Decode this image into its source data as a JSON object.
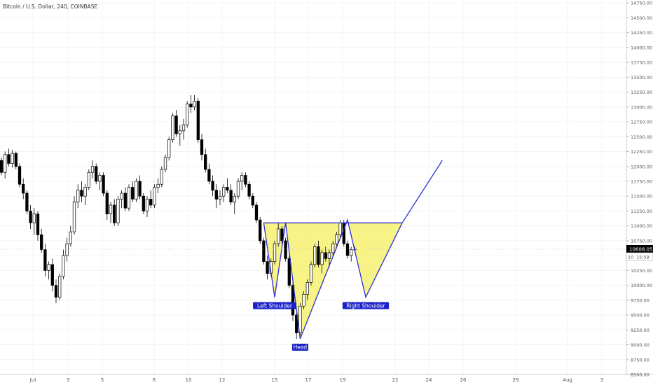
{
  "header": {
    "title": "Bitcoin / U.S. Dollar, 240, COINBASE"
  },
  "chart_data": {
    "type": "candlestick",
    "title": "Bitcoin / U.S. Dollar, 240, COINBASE",
    "x_tick_labels": [
      "Jul",
      "3",
      "5",
      "8",
      "10",
      "12",
      "15",
      "17",
      "19",
      "22",
      "24",
      "26",
      "29",
      "Aug",
      "3"
    ],
    "y_ticks": [
      8500,
      8750,
      9000,
      9250,
      9500,
      9750,
      10000,
      10250,
      10500,
      10750,
      11000,
      11250,
      11500,
      11750,
      12000,
      12250,
      12500,
      12750,
      13000,
      13250,
      13500,
      13750,
      14000,
      14250,
      14500,
      14750
    ],
    "y_tick_labels": [
      "8500.00",
      "8750.00",
      "9000.00",
      "9250.00",
      "9500.00",
      "9750.00",
      "10000.00",
      "10250.00",
      "10500.00",
      "10750.00",
      "11000.00",
      "11250.00",
      "11500.00",
      "11750.00",
      "12000.00",
      "12250.00",
      "12500.00",
      "12750.00",
      "13000.00",
      "13250.00",
      "13500.00",
      "13750.00",
      "14000.00",
      "14250.00",
      "14500.00",
      "14750.00"
    ],
    "ylim": [
      8500,
      14800
    ],
    "current_price": {
      "value": 10608.05,
      "label": "10608.05",
      "countdown": "15:58",
      "hidden_label": "10"
    },
    "candles": [
      [
        12100,
        12150,
        11850,
        11900
      ],
      [
        11900,
        12250,
        11800,
        12200
      ],
      [
        12200,
        12300,
        12000,
        12050
      ],
      [
        12050,
        12280,
        11980,
        12220
      ],
      [
        12220,
        12250,
        11950,
        12000
      ],
      [
        12000,
        12050,
        11650,
        11700
      ],
      [
        11700,
        11800,
        11450,
        11550
      ],
      [
        11550,
        11600,
        11200,
        11250
      ],
      [
        11250,
        11350,
        10950,
        11050
      ],
      [
        11050,
        11300,
        10850,
        11200
      ],
      [
        11200,
        11250,
        10750,
        10850
      ],
      [
        10850,
        10950,
        10550,
        10600
      ],
      [
        10600,
        10700,
        10150,
        10250
      ],
      [
        10250,
        10400,
        10100,
        10350
      ],
      [
        10350,
        10450,
        9900,
        10000
      ],
      [
        10000,
        10100,
        9700,
        9800
      ],
      [
        9800,
        10200,
        9750,
        10150
      ],
      [
        10150,
        10600,
        10100,
        10500
      ],
      [
        10500,
        10800,
        10400,
        10700
      ],
      [
        10700,
        11000,
        10650,
        10900
      ],
      [
        10900,
        11500,
        10850,
        11400
      ],
      [
        11400,
        11700,
        11300,
        11600
      ],
      [
        11600,
        11750,
        11400,
        11500
      ],
      [
        11500,
        11700,
        11350,
        11650
      ],
      [
        11650,
        11950,
        11600,
        11900
      ],
      [
        11900,
        12100,
        11800,
        12000
      ],
      [
        12000,
        12050,
        11700,
        11750
      ],
      [
        11750,
        11900,
        11600,
        11850
      ],
      [
        11850,
        11900,
        11500,
        11550
      ],
      [
        11550,
        11600,
        11100,
        11200
      ],
      [
        11200,
        11400,
        11050,
        11350
      ],
      [
        11350,
        11450,
        11000,
        11050
      ],
      [
        11050,
        11500,
        11000,
        11450
      ],
      [
        11450,
        11600,
        11300,
        11550
      ],
      [
        11550,
        11650,
        11250,
        11300
      ],
      [
        11300,
        11700,
        11250,
        11650
      ],
      [
        11650,
        11750,
        11400,
        11450
      ],
      [
        11450,
        11800,
        11400,
        11750
      ],
      [
        11750,
        11850,
        11450,
        11500
      ],
      [
        11500,
        11550,
        11200,
        11250
      ],
      [
        11250,
        11500,
        11150,
        11450
      ],
      [
        11450,
        11600,
        11300,
        11350
      ],
      [
        11350,
        11700,
        11300,
        11650
      ],
      [
        11650,
        11800,
        11550,
        11700
      ],
      [
        11700,
        12000,
        11650,
        11950
      ],
      [
        11950,
        12200,
        11900,
        12150
      ],
      [
        12150,
        12500,
        12100,
        12450
      ],
      [
        12450,
        12900,
        12400,
        12850
      ],
      [
        12850,
        12950,
        12500,
        12550
      ],
      [
        12550,
        12700,
        12350,
        12600
      ],
      [
        12600,
        12800,
        12450,
        12700
      ],
      [
        12700,
        13100,
        12650,
        13050
      ],
      [
        13050,
        13200,
        12900,
        13000
      ],
      [
        13000,
        13200,
        12950,
        13100
      ],
      [
        13100,
        13150,
        12400,
        12450
      ],
      [
        12450,
        12550,
        12100,
        12200
      ],
      [
        12200,
        12300,
        11900,
        11950
      ],
      [
        11950,
        12050,
        11700,
        11750
      ],
      [
        11750,
        11850,
        11500,
        11600
      ],
      [
        11600,
        11700,
        11300,
        11450
      ],
      [
        11450,
        11600,
        11350,
        11500
      ],
      [
        11500,
        11700,
        11400,
        11650
      ],
      [
        11650,
        11800,
        11550,
        11600
      ],
      [
        11600,
        11700,
        11350,
        11400
      ],
      [
        11400,
        11550,
        11200,
        11500
      ],
      [
        11500,
        11800,
        11450,
        11750
      ],
      [
        11750,
        11900,
        11600,
        11850
      ],
      [
        11850,
        11900,
        11650,
        11700
      ],
      [
        11700,
        11750,
        11450,
        11500
      ],
      [
        11500,
        11550,
        11300,
        11350
      ],
      [
        11350,
        11400,
        11050,
        11100
      ],
      [
        11100,
        11150,
        10700,
        10750
      ],
      [
        10750,
        10800,
        10350,
        10400
      ],
      [
        10400,
        10500,
        10100,
        10200
      ],
      [
        10200,
        10450,
        10150,
        10400
      ],
      [
        10400,
        10750,
        10350,
        10700
      ],
      [
        10700,
        11050,
        10650,
        10950
      ],
      [
        10950,
        11000,
        10700,
        10750
      ],
      [
        10750,
        10800,
        10400,
        10450
      ],
      [
        10450,
        10500,
        9950,
        10000
      ],
      [
        10000,
        10050,
        9400,
        9500
      ],
      [
        9500,
        9550,
        9100,
        9200
      ],
      [
        9200,
        9700,
        9150,
        9650
      ],
      [
        9650,
        9900,
        9600,
        9850
      ],
      [
        9850,
        10100,
        9750,
        10050
      ],
      [
        10050,
        10400,
        10000,
        10350
      ],
      [
        10350,
        10700,
        10300,
        10650
      ],
      [
        10650,
        10750,
        10300,
        10350
      ],
      [
        10350,
        10600,
        10200,
        10550
      ],
      [
        10550,
        10650,
        10400,
        10450
      ],
      [
        10450,
        10600,
        10300,
        10550
      ],
      [
        10550,
        10750,
        10500,
        10700
      ],
      [
        10700,
        10900,
        10650,
        10850
      ],
      [
        10850,
        11100,
        10800,
        11050
      ],
      [
        11050,
        11100,
        10650,
        10700
      ],
      [
        10700,
        10750,
        10450,
        10500
      ],
      [
        10500,
        10650,
        10400,
        10600
      ],
      [
        10600,
        10650,
        10550,
        10608
      ]
    ],
    "pattern": {
      "points": [
        {
          "date_index": 72,
          "price": 11050
        },
        {
          "date_index": 75,
          "price": 9800
        },
        {
          "date_index": 78,
          "price": 11050
        },
        {
          "date_index": 82,
          "price": 9100
        },
        {
          "date_index": 95,
          "price": 11100
        },
        {
          "date_index": 100,
          "price": 9800
        },
        {
          "date_index": 110,
          "price": 11050
        }
      ],
      "neckline": [
        {
          "date_index": 72,
          "price": 11050
        },
        {
          "date_index": 110,
          "price": 11050
        }
      ],
      "projection": [
        {
          "date_index": 110,
          "price": 11050
        },
        {
          "date_index": 121,
          "price": 12100
        }
      ],
      "labels": [
        {
          "text": "Left Shoulder",
          "date_index": 75,
          "price": 9800,
          "position": "below"
        },
        {
          "text": "Head",
          "date_index": 82,
          "price": 9100,
          "position": "below"
        },
        {
          "text": "Right Shoulder",
          "date_index": 100,
          "price": 9800,
          "position": "below"
        }
      ]
    },
    "colors": {
      "bull": "#000000",
      "bear": "#000000",
      "pattern_line": "#2a2fd6",
      "pattern_fill": "#f7f27a",
      "label_bg": "#1b22c9",
      "price_tag": "#000000"
    }
  }
}
